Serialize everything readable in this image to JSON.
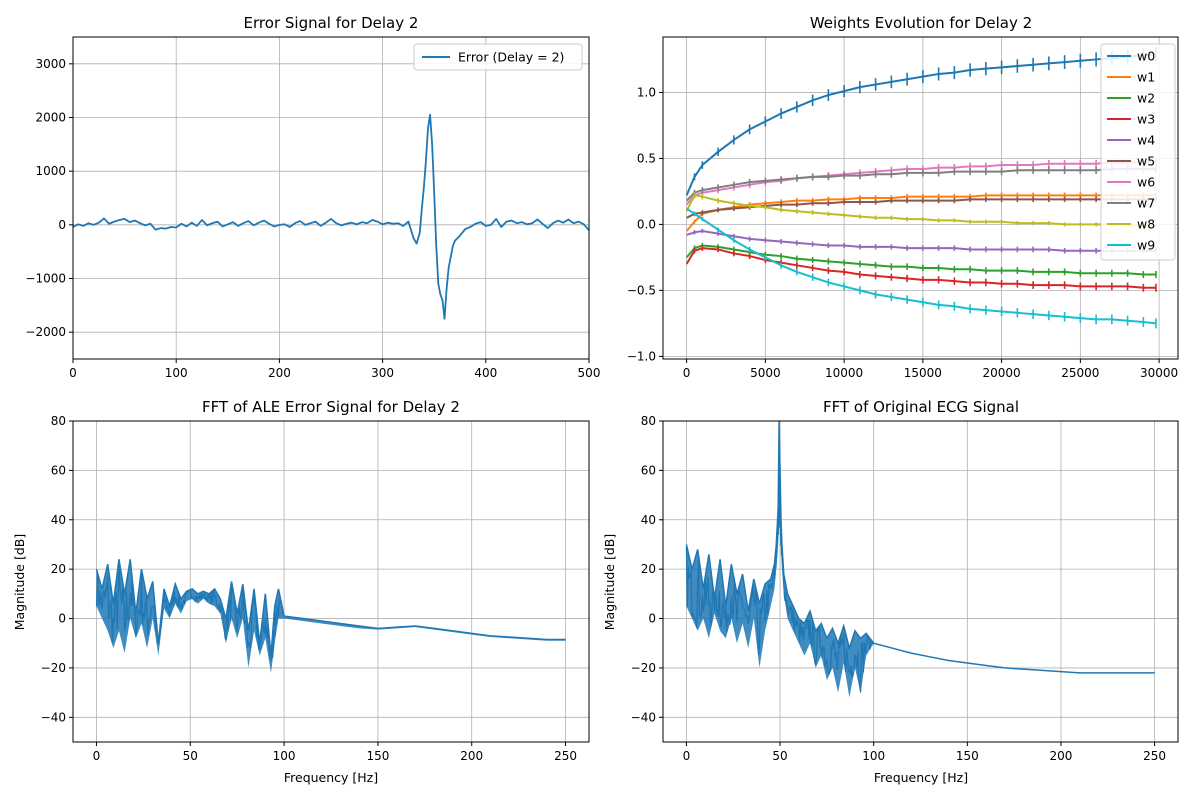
{
  "figure": {
    "panel_count": 4
  },
  "chart_data": [
    {
      "id": "error-signal",
      "type": "line",
      "title": "Error Signal for Delay 2",
      "xlabel": "",
      "ylabel": "",
      "xlim": [
        0,
        500
      ],
      "ylim": [
        -2500,
        3500
      ],
      "xticks": [
        0,
        100,
        200,
        300,
        400,
        500
      ],
      "yticks": [
        -2000,
        -1000,
        0,
        1000,
        2000,
        3000
      ],
      "grid": true,
      "legend": "top-right",
      "series": [
        {
          "name": "Error (Delay = 2)",
          "color": "#1f77b4",
          "x": [
            0,
            5,
            10,
            15,
            20,
            25,
            30,
            35,
            40,
            45,
            50,
            55,
            60,
            65,
            70,
            75,
            80,
            85,
            90,
            95,
            100,
            105,
            110,
            115,
            120,
            125,
            130,
            135,
            140,
            145,
            150,
            155,
            160,
            165,
            170,
            175,
            180,
            185,
            190,
            195,
            200,
            205,
            210,
            215,
            220,
            225,
            230,
            235,
            240,
            245,
            250,
            255,
            260,
            265,
            270,
            275,
            280,
            285,
            290,
            295,
            300,
            305,
            310,
            315,
            320,
            325,
            330,
            333,
            336,
            338,
            340,
            342,
            344,
            346,
            348,
            350,
            352,
            354,
            356,
            358,
            360,
            362,
            364,
            366,
            368,
            370,
            375,
            380,
            385,
            390,
            395,
            400,
            405,
            410,
            415,
            420,
            425,
            430,
            435,
            440,
            445,
            450,
            455,
            460,
            465,
            470,
            475,
            480,
            485,
            490,
            495,
            500
          ],
          "y": [
            -40,
            10,
            -20,
            30,
            0,
            40,
            120,
            20,
            60,
            90,
            110,
            50,
            80,
            30,
            -10,
            20,
            -90,
            -60,
            -70,
            -40,
            -50,
            20,
            -30,
            40,
            -20,
            90,
            -10,
            30,
            60,
            -30,
            10,
            50,
            -20,
            30,
            70,
            -10,
            40,
            80,
            20,
            -30,
            0,
            10,
            -40,
            30,
            70,
            0,
            30,
            60,
            -20,
            40,
            110,
            30,
            -10,
            20,
            40,
            10,
            50,
            30,
            90,
            60,
            10,
            40,
            20,
            30,
            -20,
            60,
            -250,
            -350,
            -150,
            300,
            700,
            1200,
            1800,
            2050,
            1500,
            600,
            -400,
            -1100,
            -1300,
            -1400,
            -1750,
            -1200,
            -800,
            -600,
            -400,
            -300,
            -200,
            -80,
            -40,
            20,
            50,
            -20,
            0,
            110,
            -40,
            60,
            80,
            30,
            50,
            10,
            30,
            100,
            20,
            -60,
            30,
            80,
            40,
            100,
            30,
            60,
            10,
            -100
          ]
        }
      ]
    },
    {
      "id": "weights-evolution",
      "type": "line",
      "title": "Weights Evolution for Delay 2",
      "xlabel": "",
      "ylabel": "",
      "xlim": [
        -1500,
        31200
      ],
      "ylim": [
        -1.02,
        1.42
      ],
      "xticks": [
        0,
        5000,
        10000,
        15000,
        20000,
        25000,
        30000
      ],
      "yticks": [
        -1.0,
        -0.5,
        0.0,
        0.5,
        1.0
      ],
      "grid": true,
      "legend": "top-right",
      "x": [
        0,
        500,
        1000,
        2000,
        3000,
        4000,
        5000,
        6000,
        7000,
        8000,
        9000,
        10000,
        11000,
        12000,
        13000,
        14000,
        15000,
        16000,
        17000,
        18000,
        19000,
        20000,
        21000,
        22000,
        23000,
        24000,
        25000,
        26000,
        27000,
        28000,
        29000,
        29800
      ],
      "series": [
        {
          "name": "w0",
          "color": "#1f77b4",
          "values": [
            0.22,
            0.36,
            0.45,
            0.55,
            0.64,
            0.72,
            0.78,
            0.84,
            0.89,
            0.94,
            0.98,
            1.01,
            1.04,
            1.06,
            1.08,
            1.1,
            1.12,
            1.14,
            1.15,
            1.17,
            1.18,
            1.19,
            1.2,
            1.21,
            1.22,
            1.23,
            1.24,
            1.25,
            1.26,
            1.27,
            1.28,
            1.29
          ]
        },
        {
          "name": "w1",
          "color": "#ff7f0e",
          "values": [
            -0.05,
            0.02,
            0.08,
            0.11,
            0.13,
            0.15,
            0.16,
            0.17,
            0.18,
            0.18,
            0.19,
            0.19,
            0.2,
            0.2,
            0.2,
            0.21,
            0.21,
            0.21,
            0.21,
            0.21,
            0.22,
            0.22,
            0.22,
            0.22,
            0.22,
            0.22,
            0.22,
            0.22,
            0.22,
            0.22,
            0.22,
            0.22
          ]
        },
        {
          "name": "w2",
          "color": "#2ca02c",
          "values": [
            -0.25,
            -0.18,
            -0.16,
            -0.17,
            -0.19,
            -0.21,
            -0.23,
            -0.24,
            -0.26,
            -0.27,
            -0.28,
            -0.29,
            -0.3,
            -0.31,
            -0.32,
            -0.32,
            -0.33,
            -0.33,
            -0.34,
            -0.34,
            -0.35,
            -0.35,
            -0.35,
            -0.36,
            -0.36,
            -0.36,
            -0.37,
            -0.37,
            -0.37,
            -0.37,
            -0.38,
            -0.38
          ]
        },
        {
          "name": "w3",
          "color": "#d62728",
          "values": [
            -0.3,
            -0.2,
            -0.18,
            -0.19,
            -0.22,
            -0.24,
            -0.27,
            -0.29,
            -0.31,
            -0.33,
            -0.35,
            -0.36,
            -0.38,
            -0.39,
            -0.4,
            -0.41,
            -0.42,
            -0.42,
            -0.43,
            -0.44,
            -0.44,
            -0.45,
            -0.45,
            -0.46,
            -0.46,
            -0.46,
            -0.47,
            -0.47,
            -0.47,
            -0.47,
            -0.48,
            -0.48
          ]
        },
        {
          "name": "w4",
          "color": "#9467bd",
          "values": [
            -0.08,
            -0.06,
            -0.05,
            -0.07,
            -0.09,
            -0.11,
            -0.12,
            -0.13,
            -0.14,
            -0.15,
            -0.16,
            -0.16,
            -0.17,
            -0.17,
            -0.17,
            -0.18,
            -0.18,
            -0.18,
            -0.18,
            -0.19,
            -0.19,
            -0.19,
            -0.19,
            -0.19,
            -0.19,
            -0.2,
            -0.2,
            -0.2,
            -0.2,
            -0.2,
            -0.2,
            -0.2
          ]
        },
        {
          "name": "w5",
          "color": "#8c564b",
          "values": [
            0.05,
            0.08,
            0.09,
            0.11,
            0.12,
            0.13,
            0.14,
            0.15,
            0.15,
            0.16,
            0.16,
            0.17,
            0.17,
            0.17,
            0.18,
            0.18,
            0.18,
            0.18,
            0.18,
            0.19,
            0.19,
            0.19,
            0.19,
            0.19,
            0.19,
            0.19,
            0.19,
            0.19,
            0.19,
            0.19,
            0.19,
            0.19
          ]
        },
        {
          "name": "w6",
          "color": "#e377c2",
          "values": [
            0.15,
            0.22,
            0.24,
            0.26,
            0.28,
            0.3,
            0.32,
            0.33,
            0.35,
            0.36,
            0.37,
            0.38,
            0.39,
            0.4,
            0.41,
            0.42,
            0.42,
            0.43,
            0.43,
            0.44,
            0.44,
            0.45,
            0.45,
            0.45,
            0.46,
            0.46,
            0.46,
            0.46,
            0.47,
            0.47,
            0.47,
            0.47
          ]
        },
        {
          "name": "w7",
          "color": "#7f7f7f",
          "values": [
            0.18,
            0.24,
            0.26,
            0.28,
            0.3,
            0.32,
            0.33,
            0.34,
            0.35,
            0.36,
            0.36,
            0.37,
            0.37,
            0.38,
            0.38,
            0.39,
            0.39,
            0.39,
            0.4,
            0.4,
            0.4,
            0.4,
            0.41,
            0.41,
            0.41,
            0.41,
            0.41,
            0.41,
            0.42,
            0.42,
            0.42,
            0.42
          ]
        },
        {
          "name": "w8",
          "color": "#bcbd22",
          "values": [
            0.1,
            0.22,
            0.21,
            0.18,
            0.16,
            0.14,
            0.13,
            0.11,
            0.1,
            0.09,
            0.08,
            0.07,
            0.06,
            0.05,
            0.05,
            0.04,
            0.04,
            0.03,
            0.03,
            0.02,
            0.02,
            0.02,
            0.01,
            0.01,
            0.01,
            0.0,
            0.0,
            0.0,
            0.0,
            -0.01,
            -0.01,
            -0.01
          ]
        },
        {
          "name": "w9",
          "color": "#17becf",
          "values": [
            0.12,
            0.08,
            0.04,
            -0.04,
            -0.12,
            -0.19,
            -0.25,
            -0.31,
            -0.36,
            -0.4,
            -0.44,
            -0.47,
            -0.5,
            -0.53,
            -0.55,
            -0.57,
            -0.59,
            -0.61,
            -0.62,
            -0.64,
            -0.65,
            -0.66,
            -0.67,
            -0.68,
            -0.69,
            -0.7,
            -0.71,
            -0.72,
            -0.72,
            -0.73,
            -0.74,
            -0.75
          ]
        }
      ]
    },
    {
      "id": "fft-error",
      "type": "line",
      "title": "FFT of ALE Error Signal for Delay 2",
      "xlabel": "Frequency [Hz]",
      "ylabel": "Magnitude [dB]",
      "xlim": [
        -12.5,
        262.5
      ],
      "ylim": [
        -50,
        80
      ],
      "xticks": [
        0,
        50,
        100,
        150,
        200,
        250
      ],
      "yticks": [
        -40,
        -20,
        0,
        20,
        40,
        60,
        80
      ],
      "grid": true,
      "series": [
        {
          "name": "",
          "color": "#1f77b4",
          "x": [
            0,
            3,
            6,
            9,
            12,
            15,
            18,
            21,
            24,
            27,
            30,
            33,
            36,
            39,
            42,
            45,
            48,
            51,
            54,
            57,
            60,
            63,
            66,
            69,
            72,
            75,
            78,
            81,
            84,
            87,
            90,
            93,
            95,
            97,
            100,
            110,
            120,
            130,
            140,
            150,
            160,
            170,
            180,
            190,
            200,
            210,
            220,
            230,
            240,
            250
          ],
          "y": [
            20,
            12,
            22,
            6,
            24,
            10,
            24,
            2,
            20,
            8,
            15,
            -10,
            12,
            5,
            14,
            8,
            11,
            12,
            10,
            11,
            10,
            12,
            8,
            0,
            15,
            2,
            14,
            -5,
            12,
            -10,
            10,
            -15,
            5,
            12,
            1,
            0,
            -1,
            -2,
            -3,
            -4,
            -3.5,
            -3,
            -4,
            -5,
            -6,
            -7,
            -7.5,
            -8,
            -8.5,
            -8.5
          ],
          "lower_envelope": [
            5,
            0,
            -5,
            -12,
            -5,
            -14,
            0,
            -8,
            -2,
            -12,
            0,
            -15,
            4,
            0,
            6,
            2,
            7,
            8,
            6,
            8,
            6,
            5,
            2,
            -10,
            0,
            -8,
            0,
            -20,
            -5,
            -15,
            -8,
            -22,
            -10,
            0,
            0,
            -1,
            -2,
            -3,
            -4,
            -4.5,
            -4,
            -3.5,
            -4.5,
            -5.5,
            -6.5,
            -7.5,
            -8,
            -8.5,
            -9,
            -9
          ]
        }
      ]
    },
    {
      "id": "fft-original",
      "type": "line",
      "title": "FFT of Original ECG Signal",
      "xlabel": "Frequency [Hz]",
      "ylabel": "Magnitude [dB]",
      "xlim": [
        -12.5,
        262.5
      ],
      "ylim": [
        -50,
        80
      ],
      "xticks": [
        0,
        50,
        100,
        150,
        200,
        250
      ],
      "yticks": [
        -40,
        -20,
        0,
        20,
        40,
        60,
        80
      ],
      "grid": true,
      "series": [
        {
          "name": "",
          "color": "#1f77b4",
          "x": [
            0,
            3,
            6,
            9,
            12,
            15,
            18,
            21,
            24,
            27,
            30,
            33,
            36,
            39,
            42,
            45,
            47,
            48,
            49,
            49.5,
            50,
            50.5,
            51,
            52,
            54,
            57,
            60,
            63,
            66,
            69,
            72,
            75,
            78,
            81,
            84,
            87,
            90,
            93,
            96,
            100,
            110,
            120,
            130,
            140,
            150,
            160,
            170,
            180,
            190,
            200,
            210,
            220,
            230,
            240,
            250
          ],
          "y": [
            30,
            20,
            28,
            12,
            26,
            8,
            24,
            5,
            22,
            10,
            18,
            3,
            16,
            6,
            14,
            16,
            22,
            30,
            45,
            80,
            60,
            40,
            30,
            18,
            10,
            5,
            0,
            -2,
            3,
            -5,
            -2,
            -8,
            -4,
            -10,
            -3,
            -12,
            -5,
            -8,
            -6,
            -10,
            -12,
            -14,
            -15.5,
            -17,
            -18,
            -19,
            -20,
            -20.5,
            -21,
            -21.5,
            -22,
            -22,
            -22,
            -22,
            -22
          ],
          "lower_envelope": [
            5,
            0,
            -5,
            0,
            -8,
            2,
            -5,
            -8,
            0,
            -10,
            -2,
            -12,
            0,
            -20,
            -5,
            5,
            12,
            20,
            30,
            40,
            35,
            28,
            20,
            10,
            0,
            -5,
            -10,
            -15,
            -10,
            -20,
            -15,
            -25,
            -20,
            -30,
            -18,
            -32,
            -20,
            -30,
            -15,
            -10,
            -12,
            -14,
            -15.5,
            -17,
            -18,
            -19,
            -20,
            -20.5,
            -21,
            -21.5,
            -22,
            -22,
            -22,
            -22,
            -22
          ]
        }
      ]
    }
  ]
}
